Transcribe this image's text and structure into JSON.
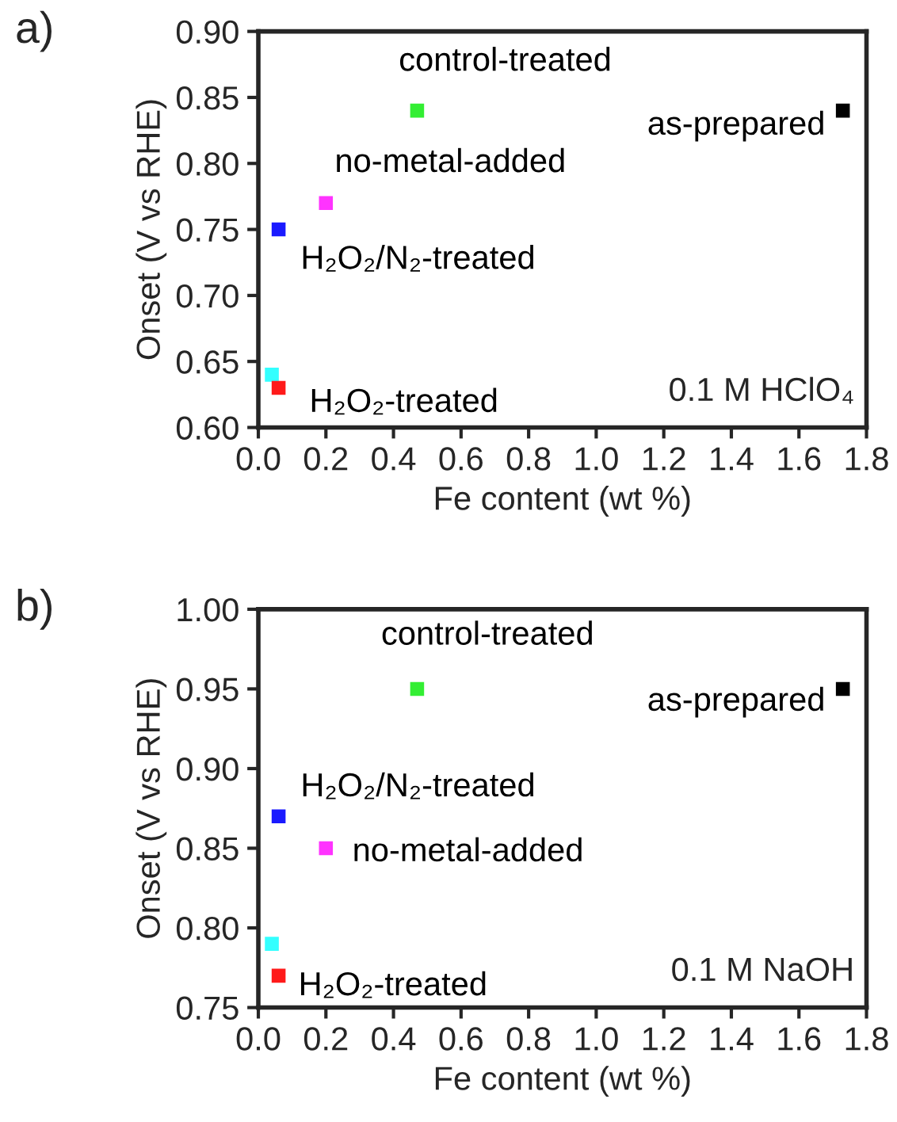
{
  "chart_data": [
    {
      "type": "scatter",
      "title": "a)",
      "xlabel": "Fe content (wt %)",
      "ylabel": "Onset (V vs RHE)",
      "marker": "square",
      "grid": false,
      "legend": false,
      "xlim": [
        0,
        1.8
      ],
      "xticks": [
        {
          "value": 0,
          "label": "0.0"
        },
        {
          "value": 0.2,
          "label": "0.2"
        },
        {
          "value": 0.4,
          "label": "0.4"
        },
        {
          "value": 0.6,
          "label": "0.6"
        },
        {
          "value": 0.8,
          "label": "0.8"
        },
        {
          "value": 1.0,
          "label": "1.0"
        },
        {
          "value": 1.2,
          "label": "1.2"
        },
        {
          "value": 1.4,
          "label": "1.4"
        },
        {
          "value": 1.6,
          "label": "1.6"
        },
        {
          "value": 1.8,
          "label": "1.8"
        }
      ],
      "ylim": [
        0.6,
        0.9
      ],
      "yticks": [
        {
          "value": 0.6,
          "label": "0.60"
        },
        {
          "value": 0.65,
          "label": "0.65"
        },
        {
          "value": 0.7,
          "label": "0.70"
        },
        {
          "value": 0.75,
          "label": "0.75"
        },
        {
          "value": 0.8,
          "label": "0.80"
        },
        {
          "value": 0.85,
          "label": "0.85"
        },
        {
          "value": 0.9,
          "label": "0.90"
        }
      ],
      "annotations": [
        "0.1 M HClO₄"
      ],
      "series": [
        {
          "name": "as-prepared",
          "color": "#000000",
          "x": [
            1.73
          ],
          "values": [
            0.84
          ]
        },
        {
          "name": "control-treated",
          "color": "#33ee33",
          "x": [
            0.47
          ],
          "values": [
            0.84
          ]
        },
        {
          "name": "no-metal-added",
          "color": "#ff33ff",
          "x": [
            0.2
          ],
          "values": [
            0.77
          ]
        },
        {
          "name": "H₂O₂/N₂-treated",
          "color": "#1a1aff",
          "x": [
            0.06
          ],
          "values": [
            0.75
          ]
        },
        {
          "color": "#33ffff",
          "x": [
            0.04
          ],
          "values": [
            0.64
          ]
        },
        {
          "name": "H₂O₂-treated",
          "color": "#ff1a1a",
          "x": [
            0.06
          ],
          "values": [
            0.63
          ]
        }
      ]
    },
    {
      "type": "scatter",
      "title": "b)",
      "xlabel": "Fe content (wt %)",
      "ylabel": "Onset (V vs RHE)",
      "marker": "square",
      "grid": false,
      "legend": false,
      "xlim": [
        0,
        1.8
      ],
      "xticks": [
        {
          "value": 0,
          "label": "0.0"
        },
        {
          "value": 0.2,
          "label": "0.2"
        },
        {
          "value": 0.4,
          "label": "0.4"
        },
        {
          "value": 0.6,
          "label": "0.6"
        },
        {
          "value": 0.8,
          "label": "0.8"
        },
        {
          "value": 1.0,
          "label": "1.0"
        },
        {
          "value": 1.2,
          "label": "1.2"
        },
        {
          "value": 1.4,
          "label": "1.4"
        },
        {
          "value": 1.6,
          "label": "1.6"
        },
        {
          "value": 1.8,
          "label": "1.8"
        }
      ],
      "ylim": [
        0.75,
        1.0
      ],
      "yticks": [
        {
          "value": 0.75,
          "label": "0.75"
        },
        {
          "value": 0.8,
          "label": "0.80"
        },
        {
          "value": 0.85,
          "label": "0.85"
        },
        {
          "value": 0.9,
          "label": "0.90"
        },
        {
          "value": 0.95,
          "label": "0.95"
        },
        {
          "value": 1.0,
          "label": "1.00"
        }
      ],
      "annotations": [
        "0.1 M NaOH"
      ],
      "series": [
        {
          "name": "as-prepared",
          "color": "#000000",
          "x": [
            1.73
          ],
          "values": [
            0.95
          ]
        },
        {
          "name": "control-treated",
          "color": "#33ee33",
          "x": [
            0.47
          ],
          "values": [
            0.95
          ]
        },
        {
          "name": "H₂O₂/N₂-treated",
          "color": "#1a1aff",
          "x": [
            0.06
          ],
          "values": [
            0.87
          ]
        },
        {
          "name": "no-metal-added",
          "color": "#ff33ff",
          "x": [
            0.2
          ],
          "values": [
            0.85
          ]
        },
        {
          "color": "#33ffff",
          "x": [
            0.04
          ],
          "values": [
            0.79
          ]
        },
        {
          "name": "H₂O₂-treated",
          "color": "#ff1a1a",
          "x": [
            0.06
          ],
          "values": [
            0.77
          ]
        }
      ]
    }
  ]
}
